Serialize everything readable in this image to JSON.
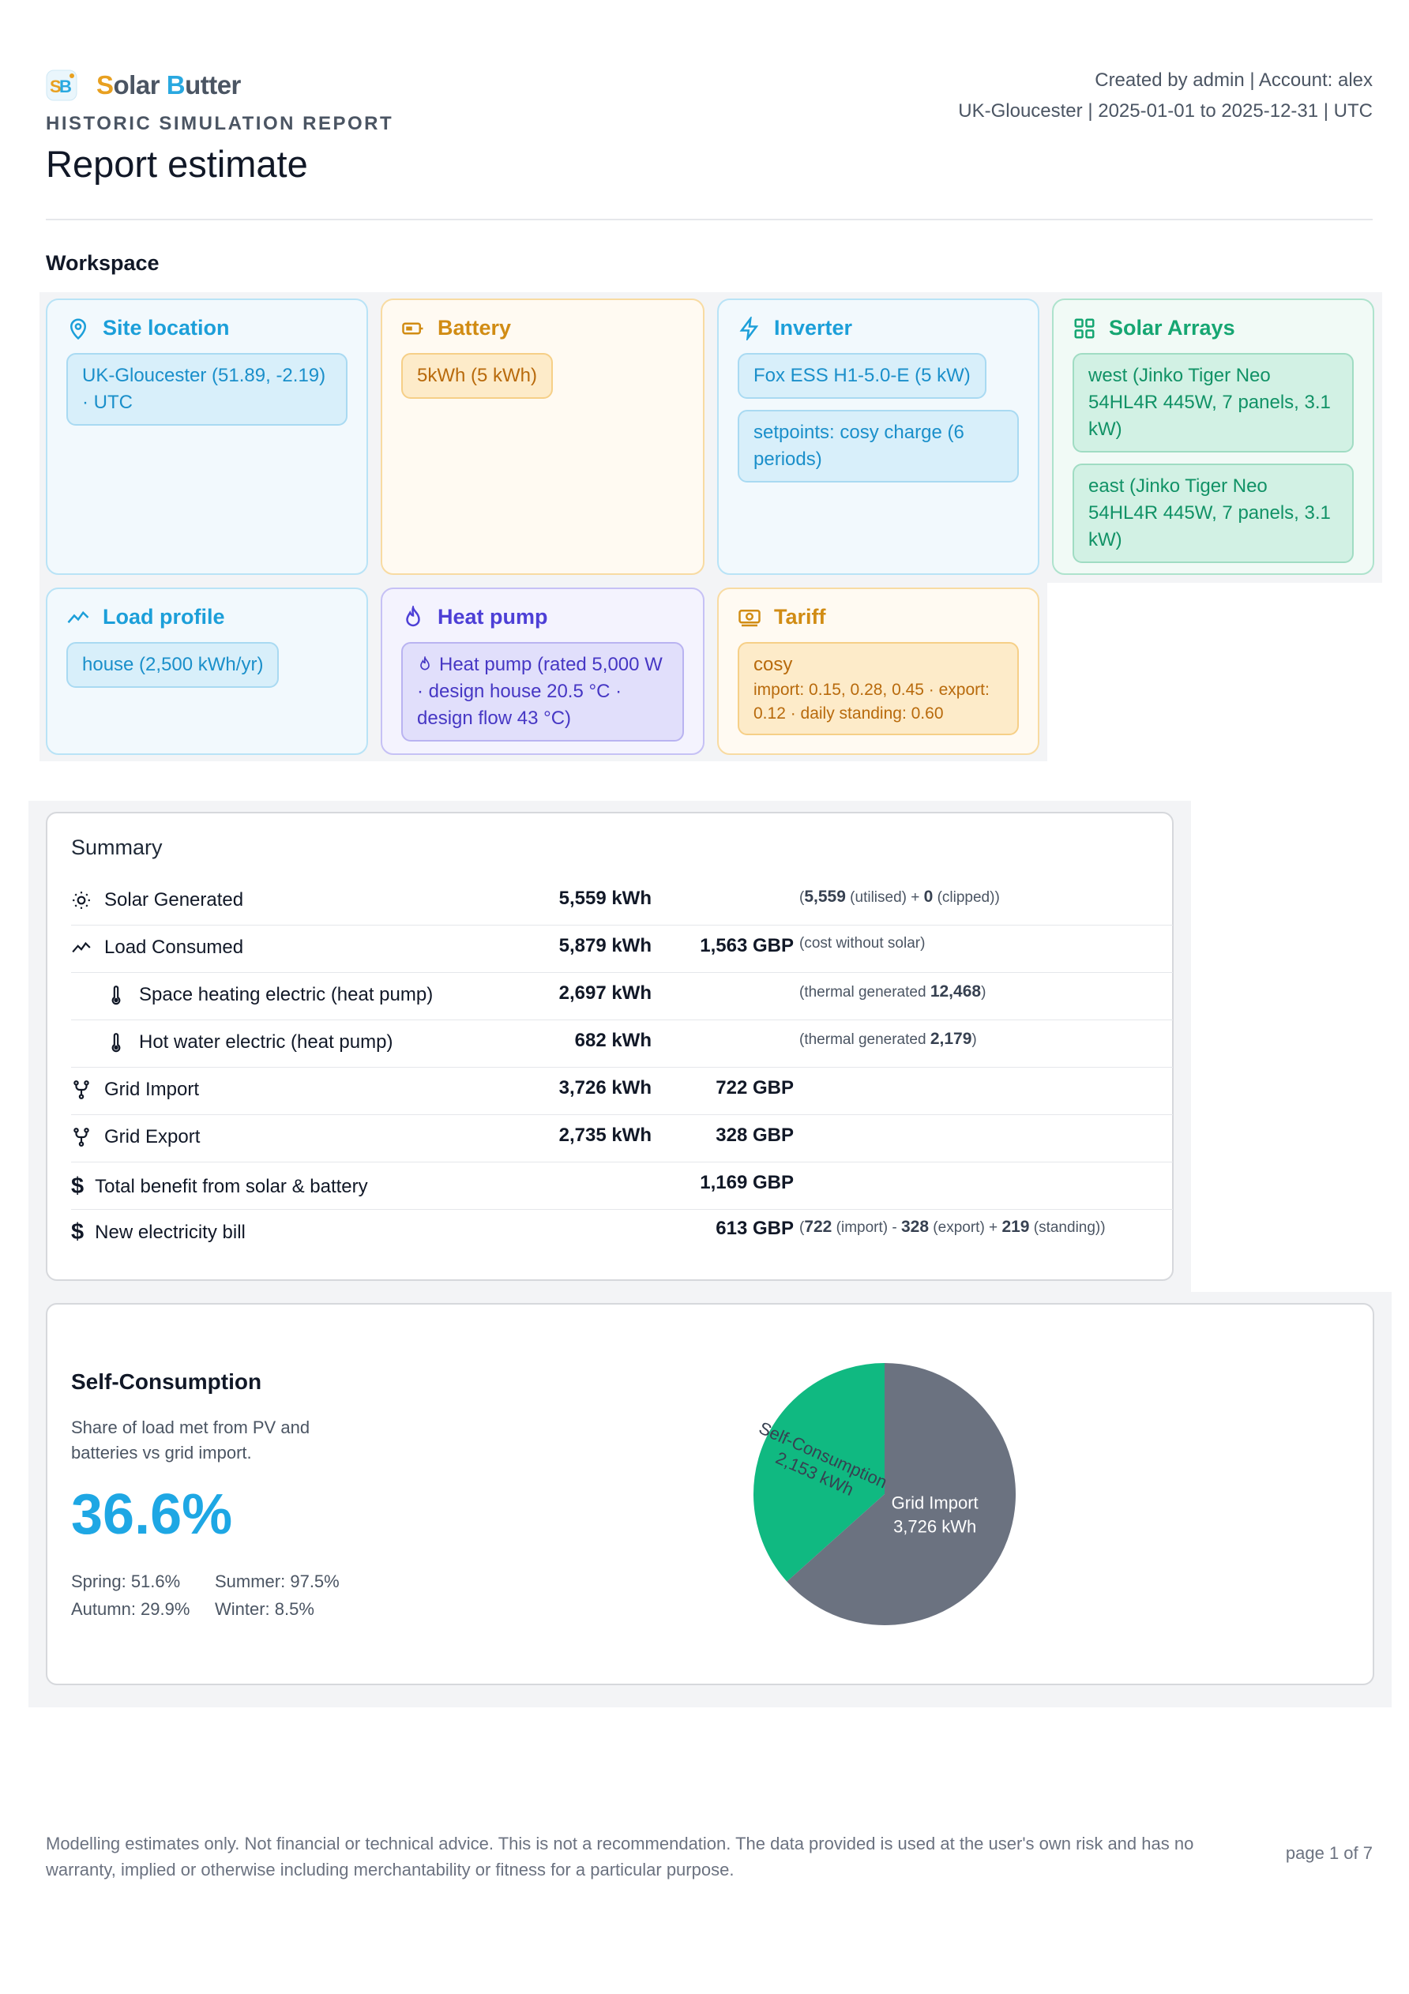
{
  "brand": {
    "s": "S",
    "olar": "olar ",
    "b": "B",
    "utter": "utter"
  },
  "report_type": "HISTORIC SIMULATION REPORT",
  "report_title": "Report estimate",
  "meta": {
    "line1": "Created by admin | Account: alex",
    "line2": "UK-Gloucester | 2025-01-01 to 2025-12-31 | UTC"
  },
  "workspace": {
    "title": "Workspace",
    "site": {
      "title": "Site location",
      "chip": "UK-Gloucester (51.89, -2.19) · UTC"
    },
    "battery": {
      "title": "Battery",
      "chip": "5kWh (5 kWh)"
    },
    "inverter": {
      "title": "Inverter",
      "chips": [
        "Fox ESS H1-5.0-E (5 kW)",
        "setpoints: cosy charge (6 periods)"
      ]
    },
    "arrays": {
      "title": "Solar Arrays",
      "chips": [
        "west (Jinko Tiger Neo 54HL4R 445W, 7 panels, 3.1 kW)",
        "east (Jinko Tiger Neo 54HL4R 445W, 7 panels, 3.1 kW)"
      ]
    },
    "load": {
      "title": "Load profile",
      "chip": "house (2,500 kWh/yr)"
    },
    "heatpump": {
      "title": "Heat pump",
      "chip": "Heat pump (rated 5,000 W · design house 20.5 °C · design flow 43 °C)"
    },
    "tariff": {
      "title": "Tariff",
      "name": "cosy",
      "detail": "import: 0.15, 0.28, 0.45 · export: 0.12 · daily standing: 0.60"
    }
  },
  "summary": {
    "title": "Summary",
    "rows": [
      {
        "label": "Solar Generated",
        "kwh": "5,559 kWh",
        "gbp": "",
        "note": {
          "pre": "(",
          "v1": "5,559",
          "t1": " (utilised) + ",
          "v2": "0",
          "t2": " (clipped))"
        }
      },
      {
        "label": "Load Consumed",
        "kwh": "5,879 kWh",
        "gbp": "1,563 GBP",
        "note": {
          "pre": "(cost without solar)"
        }
      },
      {
        "label": "Space heating electric (heat pump)",
        "kwh": "2,697 kWh",
        "gbp": "",
        "note": {
          "pre": "(thermal generated ",
          "v1": "12,468",
          "t1": ")"
        }
      },
      {
        "label": "Hot water electric (heat pump)",
        "kwh": "682 kWh",
        "gbp": "",
        "note": {
          "pre": "(thermal generated ",
          "v1": "2,179",
          "t1": ")"
        }
      },
      {
        "label": "Grid Import",
        "kwh": "3,726 kWh",
        "gbp": "722 GBP"
      },
      {
        "label": "Grid Export",
        "kwh": "2,735 kWh",
        "gbp": "328 GBP"
      },
      {
        "label": "Total benefit from solar & battery",
        "kwh": "",
        "gbp": "1,169 GBP"
      },
      {
        "label": "New electricity bill",
        "kwh": "",
        "gbp": "613 GBP",
        "note": {
          "pre": "(",
          "v1": "722",
          "t1": " (import) - ",
          "v2": "328",
          "t2": " (export) + ",
          "v3": "219",
          "t3": " (standing))"
        }
      }
    ]
  },
  "self_consumption": {
    "title": "Self-Consumption",
    "description": "Share of load met from PV and batteries vs grid import.",
    "value": "36.6%",
    "seasons": {
      "spring": "Spring: 51.6%",
      "summer": "Summer: 97.5%",
      "autumn": "Autumn: 29.9%",
      "winter": "Winter: 8.5%"
    }
  },
  "chart_data": {
    "type": "pie",
    "categories": [
      "Self-Consumption",
      "Grid Import"
    ],
    "values": [
      2153,
      3726
    ],
    "labels": [
      [
        "Self-Consumption",
        "2,153 kWh"
      ],
      [
        "Grid Import",
        "3,726 kWh"
      ]
    ],
    "colors": [
      "#10b981",
      "#6b7280"
    ]
  },
  "footer": {
    "disclaimer": "Modelling estimates only. Not financial or technical advice. This is not a recommendation. The data provided is used at the user's own risk and has no warranty, implied or otherwise including merchantability or fitness for a particular purpose.",
    "page": "page 1 of 7"
  }
}
